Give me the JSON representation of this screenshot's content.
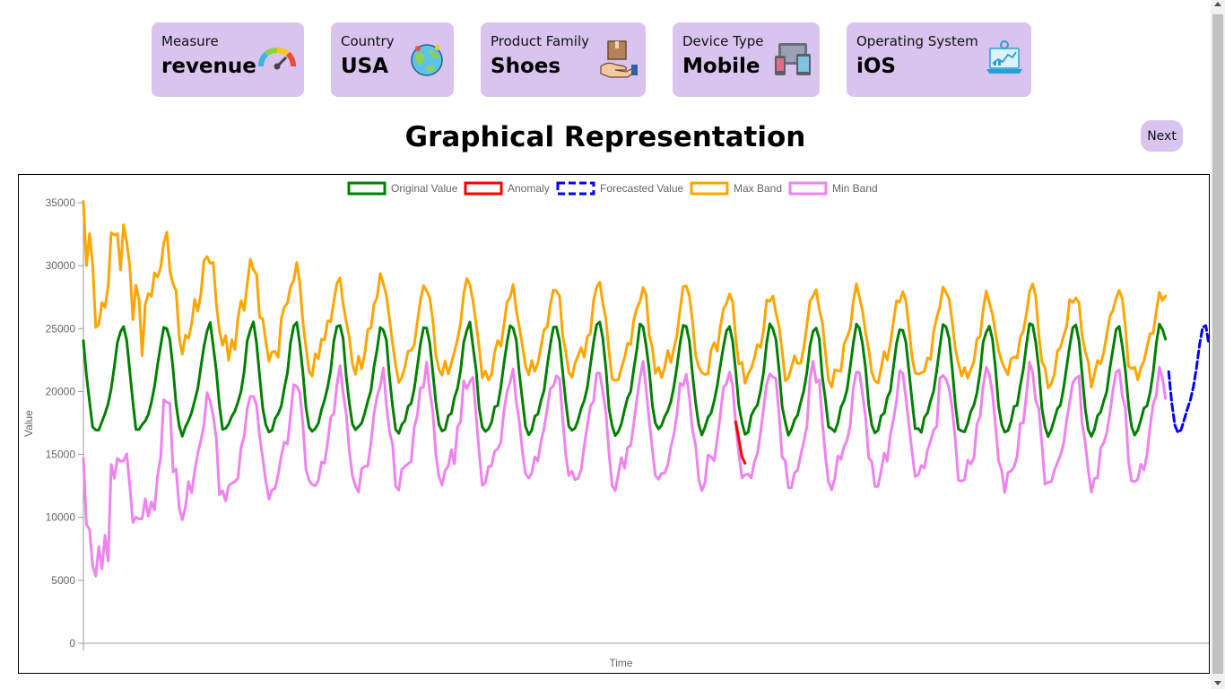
{
  "cards": [
    {
      "label": "Measure",
      "value": "revenue",
      "icon": "gauge-icon"
    },
    {
      "label": "Country",
      "value": "USA",
      "icon": "globe-icon"
    },
    {
      "label": "Product Family",
      "value": "Shoes",
      "icon": "package-hand-icon"
    },
    {
      "label": "Device Type",
      "value": "Mobile",
      "icon": "devices-icon"
    },
    {
      "label": "Operating System",
      "value": "iOS",
      "icon": "laptop-analytics-icon"
    }
  ],
  "page_title": "Graphical Representation",
  "next_label": "Next",
  "colors": {
    "card_bg": "#d8c4ee",
    "original": "#008000",
    "anomaly": "#ff0000",
    "forecast": "#0000ff",
    "max_band": "#ffa500",
    "min_band": "#ee82ee"
  },
  "chart_data": {
    "type": "line",
    "xlabel": "Time",
    "ylabel": "Value",
    "ylim": [
      0,
      35000
    ],
    "yticks": [
      0,
      5000,
      10000,
      15000,
      20000,
      25000,
      30000,
      35000
    ],
    "legend_position": "top-center",
    "grid": false,
    "x_count": 365,
    "series": [
      {
        "name": "Original Value",
        "style": "solid",
        "model": {
          "start": 0,
          "end": 351,
          "base": 20500,
          "amp": 4000,
          "period": 14,
          "phase": 2.4,
          "jitter": 350
        }
      },
      {
        "name": "Anomaly",
        "style": "solid",
        "points": [
          [
            211,
            17600
          ],
          [
            212,
            16200
          ],
          [
            213,
            14800
          ],
          [
            214,
            14300
          ]
        ]
      },
      {
        "name": "Forecasted Value",
        "style": "dashed",
        "model": {
          "start": 351,
          "end": 365,
          "base": 20500,
          "amp": 4000,
          "period": 14,
          "phase": 2.4,
          "jitter": 150
        }
      },
      {
        "name": "Max Band",
        "style": "solid",
        "model": {
          "start": 0,
          "end": 351,
          "base": 24100,
          "amp": 3200,
          "period": 14,
          "phase": 2.4,
          "jitter": 900,
          "decay_amp": 7000,
          "decay_len": 40
        }
      },
      {
        "name": "Min Band",
        "style": "solid",
        "model": {
          "start": 0,
          "end": 351,
          "base": 16800,
          "amp": 4100,
          "period": 14,
          "phase": 2.4,
          "jitter": 1000,
          "decay_amp": -7000,
          "decay_len": 35
        }
      }
    ]
  }
}
